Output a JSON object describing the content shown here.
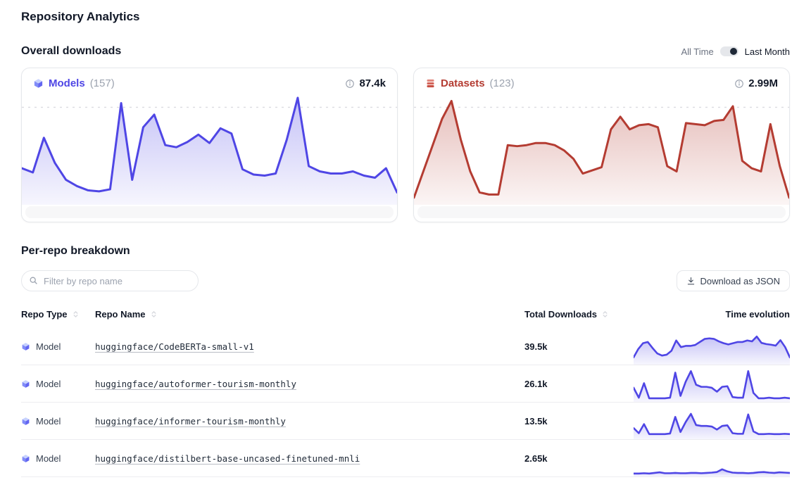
{
  "page": {
    "title": "Repository Analytics"
  },
  "overall": {
    "heading": "Overall downloads",
    "toggle": {
      "label_all_time": "All Time",
      "label_last_month": "Last Month",
      "selected": "Last Month"
    },
    "cards": [
      {
        "label": "Models",
        "count": "(157)",
        "total": "87.4k",
        "accent": "#4f46e5"
      },
      {
        "label": "Datasets",
        "count": "(123)",
        "total": "2.99M",
        "accent": "#b43c32"
      }
    ]
  },
  "breakdown": {
    "heading": "Per-repo breakdown",
    "filter": {
      "placeholder": "Filter by repo name"
    },
    "download_button": {
      "label": "Download as JSON"
    },
    "table": {
      "headers": [
        {
          "label": "Repo Type",
          "sortable": true
        },
        {
          "label": "Repo Name",
          "sortable": true
        },
        {
          "label": "Total Downloads",
          "sortable": true
        },
        {
          "label": "Time evolution",
          "sortable": false
        }
      ],
      "rows": [
        {
          "type": "Model",
          "name": "huggingface/CodeBERTa-small-v1",
          "downloads": "39.5k"
        },
        {
          "type": "Model",
          "name": "huggingface/autoformer-tourism-monthly",
          "downloads": "26.1k"
        },
        {
          "type": "Model",
          "name": "huggingface/informer-tourism-monthly",
          "downloads": "13.5k"
        },
        {
          "type": "Model",
          "name": "huggingface/distilbert-base-uncased-finetuned-mnli",
          "downloads": "2.65k"
        }
      ]
    }
  },
  "chart_data": [
    {
      "id": "models-overall-downloads",
      "type": "area",
      "series_label": "Models",
      "total_label": "87.4k",
      "color": "#4f46e5",
      "stroke_width": 3,
      "gridline": 91,
      "ylim": [
        0,
        100
      ],
      "x_axis": "time",
      "grid": "dashed-max-line",
      "values": [
        33,
        29,
        62,
        38,
        22,
        16,
        12,
        11,
        13,
        95,
        22,
        72,
        84,
        55,
        53,
        58,
        65,
        57,
        71,
        66,
        32,
        27,
        26,
        28,
        60,
        100,
        35,
        30,
        28,
        28,
        30,
        26,
        24,
        33,
        10
      ]
    },
    {
      "id": "datasets-overall-downloads",
      "type": "area",
      "series_label": "Datasets",
      "total_label": "2.99M",
      "color": "#b43c32",
      "stroke_width": 3,
      "gridline": 91,
      "ylim": [
        0,
        100
      ],
      "x_axis": "time",
      "grid": "dashed-max-line",
      "values": [
        5,
        30,
        55,
        80,
        97,
        60,
        30,
        10,
        8,
        8,
        55,
        54,
        55,
        57,
        57,
        55,
        50,
        42,
        28,
        31,
        34,
        70,
        82,
        70,
        74,
        75,
        72,
        35,
        30,
        76,
        75,
        74,
        78,
        79,
        92,
        40,
        33,
        30,
        75,
        35,
        5
      ]
    },
    {
      "id": "spark-codeberta-small-v1",
      "type": "area",
      "series_label": "huggingface/CodeBERTa-small-v1",
      "color": "#4f46e5",
      "stroke_width": 2.6,
      "ylim": [
        0,
        100
      ],
      "x_axis": "time",
      "values": [
        22,
        50,
        69,
        73,
        53,
        35,
        28,
        31,
        44,
        78,
        56,
        60,
        60,
        63,
        73,
        83,
        85,
        83,
        75,
        69,
        65,
        69,
        73,
        73,
        78,
        75,
        91,
        70,
        66,
        64,
        61,
        79,
        56,
        22
      ]
    },
    {
      "id": "spark-autoformer-tourism-monthly",
      "type": "area",
      "series_label": "huggingface/autoformer-tourism-monthly",
      "color": "#4f46e5",
      "stroke_width": 2.6,
      "ylim": [
        0,
        100
      ],
      "x_axis": "time",
      "values": [
        45,
        12,
        60,
        10,
        10,
        10,
        10,
        12,
        95,
        18,
        65,
        100,
        55,
        48,
        48,
        45,
        32,
        48,
        50,
        14,
        12,
        12,
        100,
        28,
        10,
        10,
        12,
        10,
        10,
        12,
        10
      ]
    },
    {
      "id": "spark-informer-tourism-monthly",
      "type": "area",
      "series_label": "huggingface/informer-tourism-monthly",
      "color": "#4f46e5",
      "stroke_width": 2.6,
      "ylim": [
        0,
        100
      ],
      "x_axis": "time",
      "values": [
        35,
        18,
        48,
        15,
        15,
        15,
        15,
        17,
        72,
        22,
        55,
        82,
        45,
        42,
        42,
        40,
        30,
        42,
        44,
        18,
        16,
        16,
        80,
        24,
        15,
        15,
        16,
        15,
        15,
        16,
        15
      ]
    },
    {
      "id": "spark-distilbert-finetuned-mnli",
      "type": "area",
      "series_label": "huggingface/distilbert-base-uncased-finetuned-mnli",
      "color": "#4f46e5",
      "stroke_width": 2.6,
      "ylim": [
        0,
        100
      ],
      "x_axis": "time",
      "values": [
        8,
        8,
        9,
        8,
        10,
        12,
        9,
        9,
        10,
        9,
        9,
        10,
        10,
        9,
        10,
        11,
        13,
        22,
        15,
        11,
        10,
        10,
        9,
        10,
        12,
        13,
        11,
        10,
        12,
        11,
        10
      ]
    }
  ]
}
